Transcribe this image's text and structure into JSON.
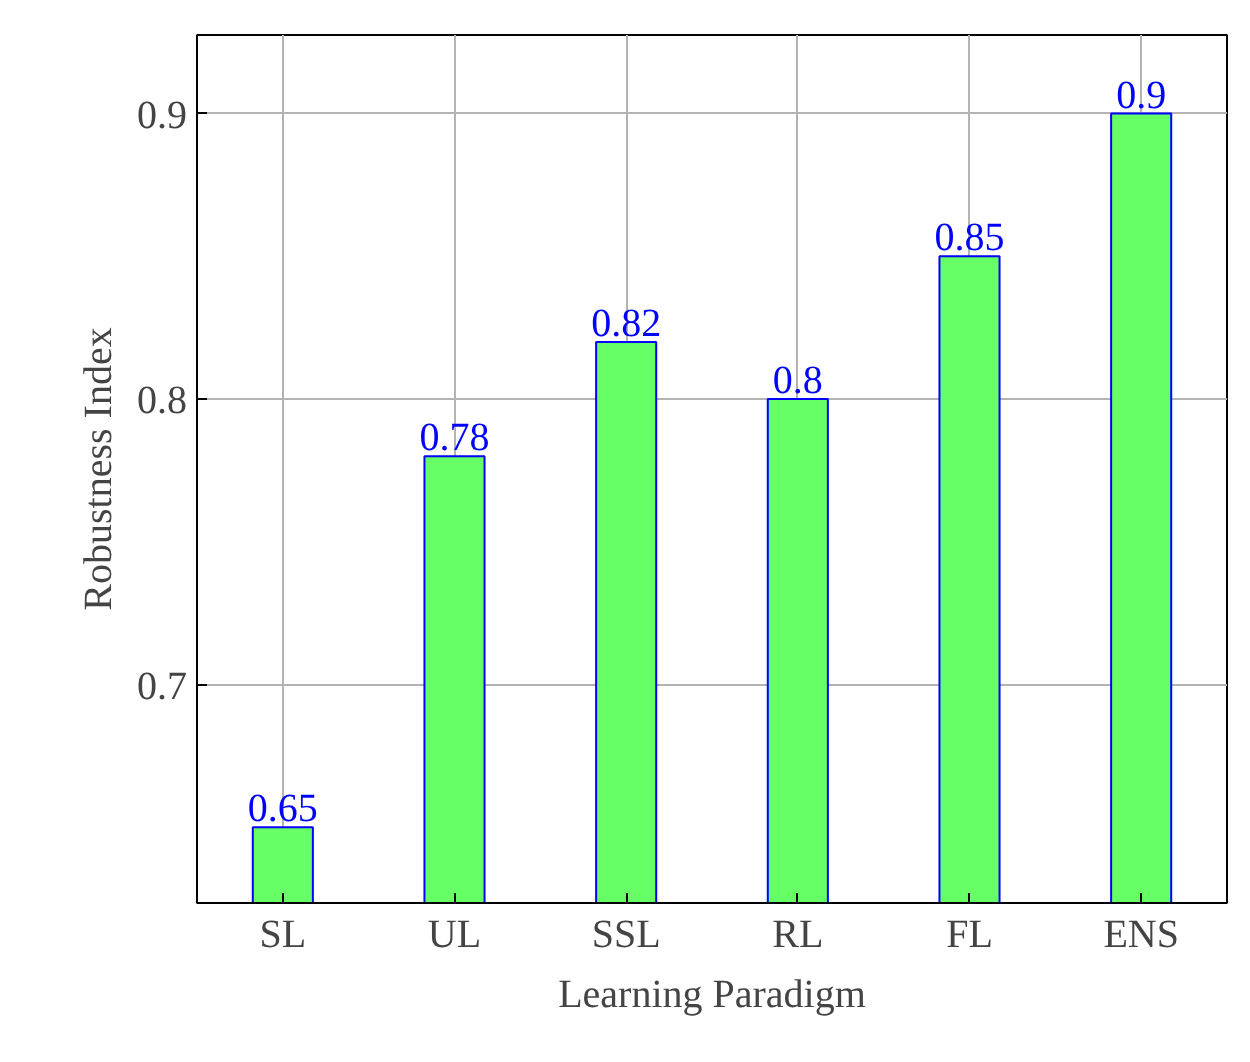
{
  "chart_data": {
    "type": "bar",
    "xlabel": "Learning Paradigm",
    "ylabel": "Robustness Index",
    "categories": [
      "SL",
      "UL",
      "SSL",
      "RL",
      "FL",
      "ENS"
    ],
    "series": [
      {
        "color": "#66ff66",
        "values": [
          0.65,
          0.78,
          0.82,
          0.8,
          0.85,
          0.9
        ]
      }
    ],
    "ylim": [
      0.6235,
      0.9275
    ],
    "yticks": [
      0.7,
      0.8,
      0.9
    ],
    "grid": true,
    "data_labels": true
  }
}
